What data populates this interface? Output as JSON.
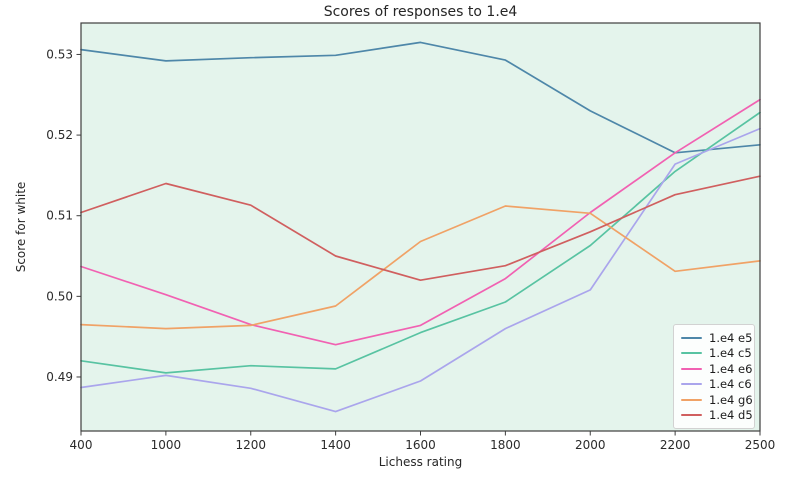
{
  "chart_data": {
    "type": "line",
    "title": "Scores of responses to 1.e4",
    "xlabel": "Lichess rating",
    "ylabel": "Score for white",
    "categories": [
      "400",
      "1000",
      "1200",
      "1400",
      "1600",
      "1800",
      "2000",
      "2200",
      "2500"
    ],
    "y_ticks": [
      0.49,
      0.5,
      0.51,
      0.52,
      0.53
    ],
    "y_tick_labels": [
      "0.49",
      "0.50",
      "0.51",
      "0.52",
      "0.53"
    ],
    "ylim": [
      0.4833,
      0.5339
    ],
    "grid": false,
    "legend_position": "lower right",
    "plot_bg_color": "#e4f4ec",
    "axis_color": "#3d3d3d",
    "series": [
      {
        "name": "1.e4 e5",
        "color": "#4e87a9",
        "values": [
          0.5306,
          0.5292,
          0.5296,
          0.5299,
          0.5315,
          0.5293,
          0.523,
          0.5178,
          0.5188
        ]
      },
      {
        "name": "1.e4 c5",
        "color": "#58c3a2",
        "values": [
          0.492,
          0.4905,
          0.4914,
          0.491,
          0.4955,
          0.4993,
          0.5063,
          0.5155,
          0.5228
        ]
      },
      {
        "name": "1.e4 e6",
        "color": "#f161b2",
        "values": [
          0.5037,
          0.5002,
          0.4965,
          0.494,
          0.4964,
          0.5022,
          0.5104,
          0.5178,
          0.5244
        ]
      },
      {
        "name": "1.e4 c6",
        "color": "#aaa5ec",
        "values": [
          0.4887,
          0.4902,
          0.4886,
          0.4857,
          0.4895,
          0.496,
          0.5008,
          0.5164,
          0.5208
        ]
      },
      {
        "name": "1.e4 g6",
        "color": "#f0a266",
        "values": [
          0.4965,
          0.496,
          0.4964,
          0.4988,
          0.5068,
          0.5112,
          0.5103,
          0.5031,
          0.5044
        ]
      },
      {
        "name": "1.e4 d5",
        "color": "#d05f5f",
        "values": [
          0.5104,
          0.514,
          0.5113,
          0.505,
          0.502,
          0.5038,
          0.508,
          0.5126,
          0.5149
        ]
      }
    ]
  }
}
